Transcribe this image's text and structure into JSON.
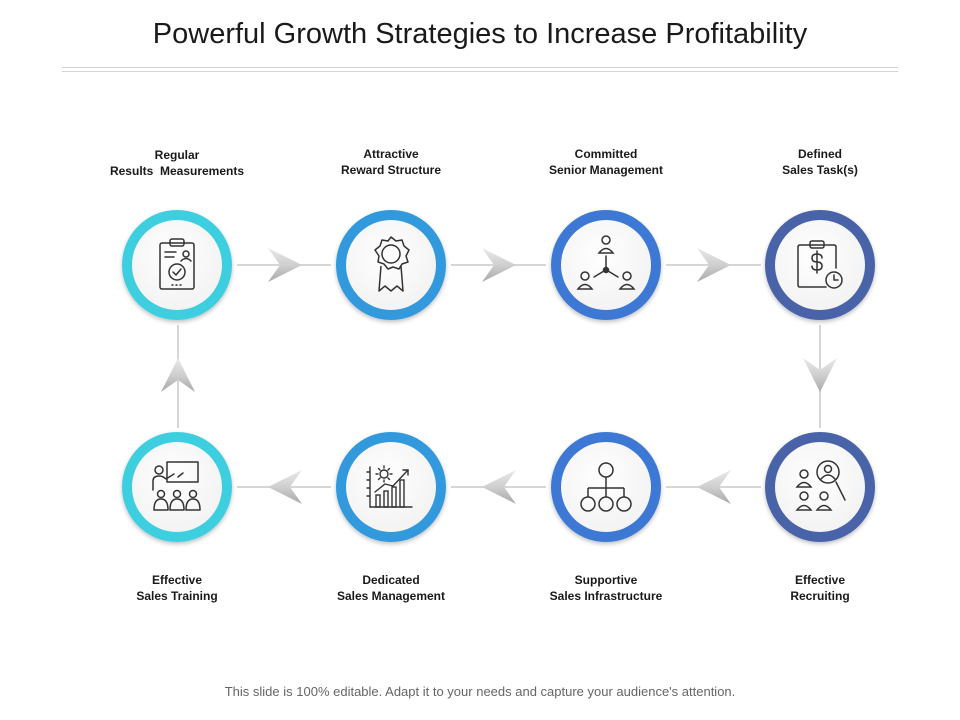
{
  "title": "Powerful Growth Strategies to Increase Profitability",
  "footer": "This slide is 100% editable. Adapt it to your needs and capture your audience's attention.",
  "colors": {
    "ring_cyan": "#3ecfe0",
    "ring_mid": "#3399dd",
    "ring_blue": "#3e79d4",
    "ring_navy": "#4a64a8",
    "connector": "#d6d6d6",
    "arrow": "#c3c3c3",
    "icon_stroke": "#333333"
  },
  "steps": [
    {
      "line1": "Regular",
      "line2": "Results  Measurements",
      "icon": "clipboard-check-icon"
    },
    {
      "line1": "Attractive",
      "line2": "Reward Structure",
      "icon": "award-ribbon-icon"
    },
    {
      "line1": "Committed",
      "line2": "Senior Management",
      "icon": "team-network-icon"
    },
    {
      "line1": "Defined",
      "line2": "Sales Task(s)",
      "icon": "dollar-clipboard-clock-icon"
    },
    {
      "line1": "Effective",
      "line2": "Recruiting",
      "icon": "people-search-icon"
    },
    {
      "line1": "Supportive",
      "line2": "Sales Infrastructure",
      "icon": "org-chart-icon"
    },
    {
      "line1": "Dedicated",
      "line2": "Sales Management",
      "icon": "chart-gear-icon"
    },
    {
      "line1": "Effective",
      "line2": "Sales Training",
      "icon": "presentation-audience-icon"
    }
  ]
}
